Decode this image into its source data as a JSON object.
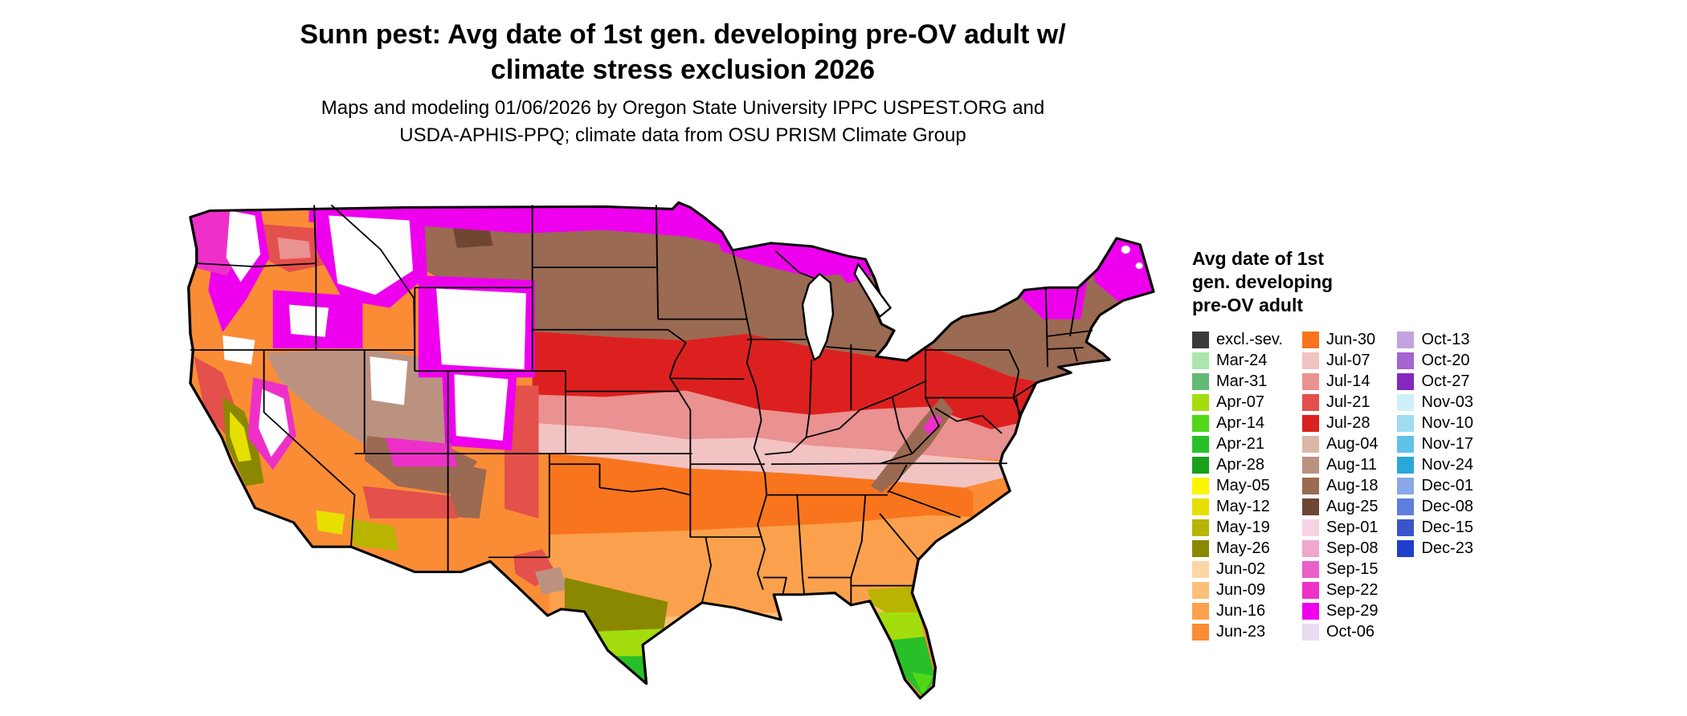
{
  "header": {
    "title_line1": "Sunn pest: Avg date of 1st gen. developing pre-OV adult w/",
    "title_line2": "climate stress exclusion 2026",
    "subtitle_line1": "Maps and modeling 01/06/2026 by Oregon State University IPPC USPEST.ORG and",
    "subtitle_line2": "USDA-APHIS-PPQ; climate data from OSU PRISM Climate Group"
  },
  "legend": {
    "title_line1": "Avg date of 1st",
    "title_line2": "gen. developing",
    "title_line3": "pre-OV adult",
    "columns": [
      [
        {
          "label": "excl.-sev.",
          "color": "#3b3b3b"
        },
        {
          "label": "Mar-24",
          "color": "#abe6ab"
        },
        {
          "label": "Mar-31",
          "color": "#63ba77"
        },
        {
          "label": "Apr-07",
          "color": "#a4dd0e"
        },
        {
          "label": "Apr-14",
          "color": "#50d818"
        },
        {
          "label": "Apr-21",
          "color": "#28c028"
        },
        {
          "label": "Apr-28",
          "color": "#18a018"
        },
        {
          "label": "May-05",
          "color": "#fbf500"
        },
        {
          "label": "May-12",
          "color": "#e6df00"
        },
        {
          "label": "May-19",
          "color": "#b8b400"
        },
        {
          "label": "May-26",
          "color": "#8a8800"
        },
        {
          "label": "Jun-02",
          "color": "#fcd7a4"
        },
        {
          "label": "Jun-09",
          "color": "#fbbf77"
        },
        {
          "label": "Jun-16",
          "color": "#fba14d"
        },
        {
          "label": "Jun-23",
          "color": "#fb8c36"
        }
      ],
      [
        {
          "label": "Jun-30",
          "color": "#f8751e"
        },
        {
          "label": "Jul-07",
          "color": "#f2c3c3"
        },
        {
          "label": "Jul-14",
          "color": "#ea9191"
        },
        {
          "label": "Jul-21",
          "color": "#e4504c"
        },
        {
          "label": "Jul-28",
          "color": "#dc2020"
        },
        {
          "label": "Aug-04",
          "color": "#d9b8a8"
        },
        {
          "label": "Aug-11",
          "color": "#bb9280"
        },
        {
          "label": "Aug-18",
          "color": "#9a6a52"
        },
        {
          "label": "Aug-25",
          "color": "#6e4632"
        },
        {
          "label": "Sep-01",
          "color": "#f7d2e2"
        },
        {
          "label": "Sep-08",
          "color": "#f0a6cd"
        },
        {
          "label": "Sep-15",
          "color": "#ea5fc8"
        },
        {
          "label": "Sep-22",
          "color": "#ee30c8"
        },
        {
          "label": "Sep-29",
          "color": "#ee00ee"
        },
        {
          "label": "Oct-06",
          "color": "#e8dcf0"
        }
      ],
      [
        {
          "label": "Oct-13",
          "color": "#c5a3e0"
        },
        {
          "label": "Oct-20",
          "color": "#a565d2"
        },
        {
          "label": "Oct-27",
          "color": "#8428c0"
        },
        {
          "label": "Nov-03",
          "color": "#cff0fa"
        },
        {
          "label": "Nov-10",
          "color": "#9fdcf2"
        },
        {
          "label": "Nov-17",
          "color": "#5fc3e8"
        },
        {
          "label": "Nov-24",
          "color": "#29a8d8"
        },
        {
          "label": "Dec-01",
          "color": "#8aa8e8"
        },
        {
          "label": "Dec-08",
          "color": "#5f7edd"
        },
        {
          "label": "Dec-15",
          "color": "#3a55cc"
        },
        {
          "label": "Dec-23",
          "color": "#1f3ecb"
        }
      ]
    ]
  },
  "map": {
    "outline_color": "#000000",
    "state_border_color": "#000000",
    "background": "#ffffff",
    "excluded_fill": "#ffffff",
    "lake_fill": "#ffffff"
  }
}
